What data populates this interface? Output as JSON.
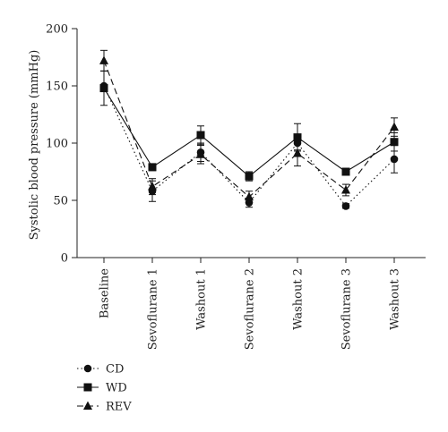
{
  "chart_data": {
    "type": "line",
    "categories": [
      "Baseline",
      "Sevoflurane 1",
      "Washout 1",
      "Sevoflurane 2",
      "Washout 2",
      "Sevoflurane 3",
      "Washout 3"
    ],
    "ylabel": "Systolic blood pressure (mmHg)",
    "xlabel": "",
    "ylim": [
      0,
      200
    ],
    "yticks": [
      0,
      50,
      100,
      150,
      200
    ],
    "grid": false,
    "legend_position": "bottom-left",
    "series": [
      {
        "name": "CD",
        "marker": "circle",
        "line_style": "dotted",
        "values": [
          150,
          58,
          92,
          48,
          100,
          45,
          86
        ],
        "errors": [
          0,
          9,
          8,
          4,
          6,
          2,
          12
        ]
      },
      {
        "name": "WD",
        "marker": "square",
        "line_style": "solid",
        "values": [
          148,
          79,
          107,
          71,
          105,
          75,
          101
        ],
        "errors": [
          15,
          3,
          8,
          4,
          12,
          3,
          8
        ]
      },
      {
        "name": "REV",
        "marker": "triangle",
        "line_style": "dashed",
        "values": [
          172,
          62,
          90,
          53,
          91,
          59,
          114
        ],
        "errors": [
          9,
          7,
          8,
          5,
          11,
          5,
          8
        ]
      }
    ]
  }
}
